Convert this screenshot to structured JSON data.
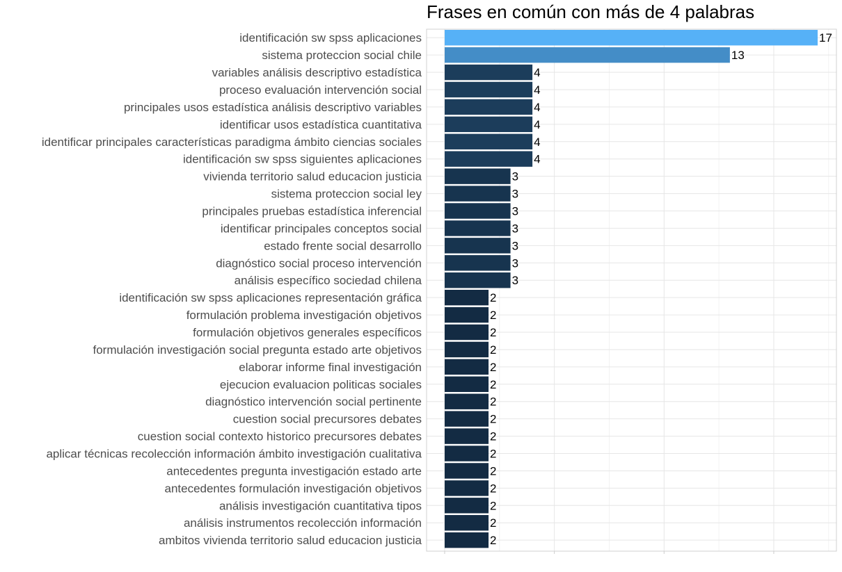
{
  "chart_data": {
    "type": "bar",
    "orientation": "horizontal",
    "title": "Frases en común con más de 4 palabras",
    "xlabel": "",
    "ylabel": "",
    "xlim": [
      0,
      17.8
    ],
    "grid": true,
    "legend": "none",
    "categories": [
      "identificación sw spss aplicaciones",
      "sistema proteccion social chile",
      "variables análisis descriptivo estadística",
      "proceso evaluación intervención social",
      "principales usos estadística análisis descriptivo variables",
      "identificar usos estadística cuantitativa",
      "identificar principales características paradigma ámbito ciencias sociales",
      "identificación sw spss siguientes aplicaciones",
      "vivienda territorio salud educacion justicia",
      "sistema proteccion social ley",
      "principales pruebas estadística inferencial",
      "identificar principales conceptos social",
      "estado frente social desarrollo",
      "diagnóstico social proceso intervención",
      "análisis específico sociedad chilena",
      "identificación sw spss aplicaciones representación gráfica",
      "formulación problema investigación objetivos",
      "formulación objetivos generales específicos",
      "formulación investigación social pregunta estado arte objetivos",
      "elaborar informe final investigación",
      "ejecucion evaluacion politicas sociales",
      "diagnóstico intervención social pertinente",
      "cuestion social precursores debates",
      "cuestion social contexto historico precursores debates",
      "aplicar técnicas recolección información ámbito investigación cualitativa",
      "antecedentes pregunta investigación estado arte",
      "antecedentes formulación investigación objetivos",
      "análisis investigación cuantitativa tipos",
      "análisis instrumentos recolección información",
      "ambitos vivienda territorio salud educacion justicia"
    ],
    "values": [
      17,
      13,
      4,
      4,
      4,
      4,
      4,
      4,
      3,
      3,
      3,
      3,
      3,
      3,
      3,
      2,
      2,
      2,
      2,
      2,
      2,
      2,
      2,
      2,
      2,
      2,
      2,
      2,
      2,
      2
    ],
    "color_scale": {
      "low": "#132b43",
      "high": "#56b1f7"
    }
  }
}
